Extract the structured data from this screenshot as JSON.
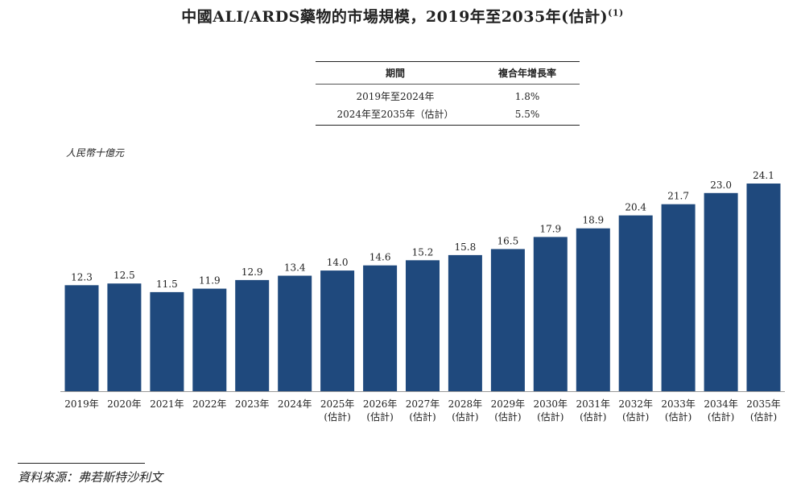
{
  "title": "中國ALI/ARDS藥物的市場規模，2019年至2035年(估計)",
  "title_note": "(1)",
  "cagr_table": {
    "headers": [
      "期間",
      "複合年增長率"
    ],
    "rows": [
      {
        "period": "2019年至2024年",
        "rate": "1.8%"
      },
      {
        "period": "2024年至2035年（估計）",
        "rate": "5.5%"
      }
    ]
  },
  "source": "資料來源：弗若斯特沙利文",
  "colors": {
    "bar": "#1f497d",
    "axis": "#999999",
    "text": "#222222"
  },
  "chart_data": {
    "type": "bar",
    "ylabel": "人民幣十億元",
    "ylim": [
      0,
      24.1
    ],
    "categories": [
      [
        "2019年"
      ],
      [
        "2020年"
      ],
      [
        "2021年"
      ],
      [
        "2022年"
      ],
      [
        "2023年"
      ],
      [
        "2024年"
      ],
      [
        "2025年",
        "(估計)"
      ],
      [
        "2026年",
        "(估計)"
      ],
      [
        "2027年",
        "(估計)"
      ],
      [
        "2028年",
        "(估計)"
      ],
      [
        "2029年",
        "(估計)"
      ],
      [
        "2030年",
        "(估計)"
      ],
      [
        "2031年",
        "(估計)"
      ],
      [
        "2032年",
        "(估計)"
      ],
      [
        "2033年",
        "(估計)"
      ],
      [
        "2034年",
        "(估計)"
      ],
      [
        "2035年",
        "(估計)"
      ]
    ],
    "values": [
      12.3,
      12.5,
      11.5,
      11.9,
      12.9,
      13.4,
      14.0,
      14.6,
      15.2,
      15.8,
      16.5,
      17.9,
      18.9,
      20.4,
      21.7,
      23.0,
      24.1
    ],
    "value_labels": [
      "12.3",
      "12.5",
      "11.5",
      "11.9",
      "12.9",
      "13.4",
      "14.0",
      "14.6",
      "15.2",
      "15.8",
      "16.5",
      "17.9",
      "18.9",
      "20.4",
      "21.7",
      "23.0",
      "24.1"
    ]
  }
}
